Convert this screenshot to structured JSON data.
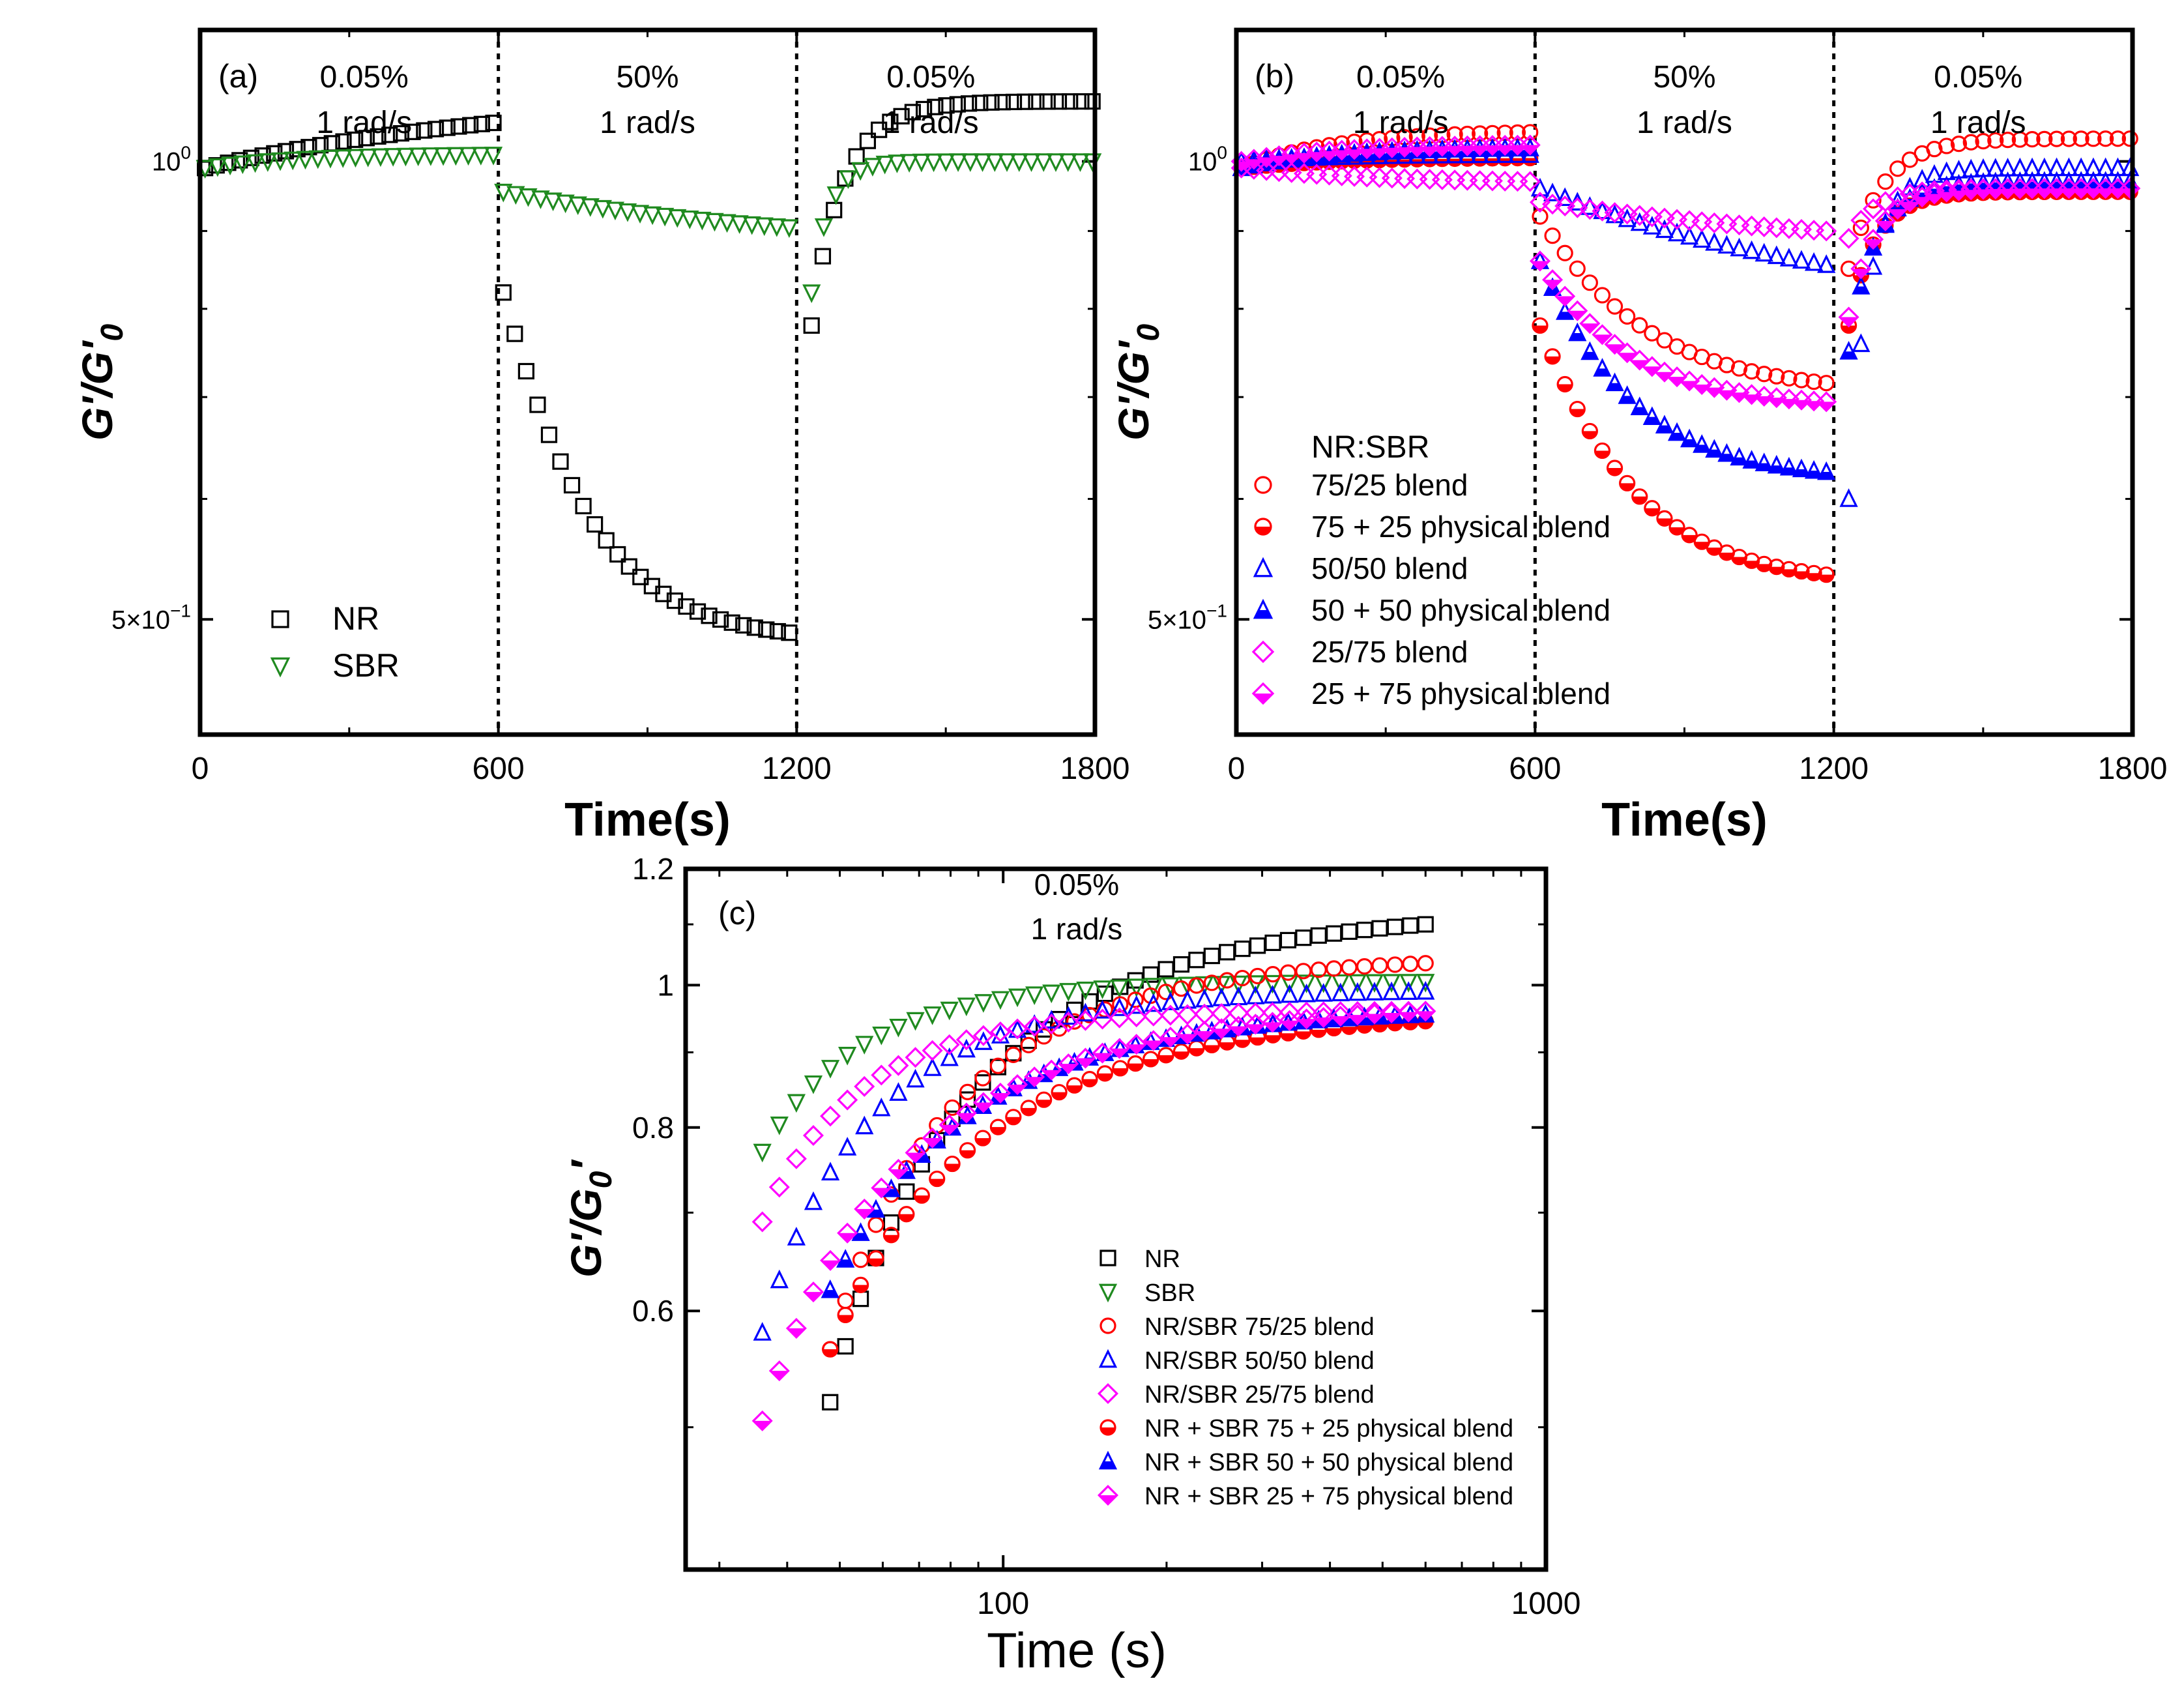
{
  "colors": {
    "NR": "#000000",
    "SBR": "#1f8a1f",
    "red": "#ff0000",
    "blue": "#0000ff",
    "magenta": "#ff00ff"
  },
  "chart_data": [
    {
      "id": "a",
      "type": "scatter",
      "panel_label": "(a)",
      "xlabel": "Time(s)",
      "ylabel_html": "G'/G'0",
      "ylabel_main": "G'/G'",
      "ylabel_sub": "0",
      "yscale": "log",
      "xlim": [
        0,
        1800
      ],
      "ylim": [
        0.42,
        1.22
      ],
      "xticks": [
        "0",
        "600",
        "1200",
        "1800"
      ],
      "yticks": [
        {
          "v": 1.0,
          "label": "10",
          "sup": "0"
        },
        {
          "v": 0.5,
          "label": "5×10",
          "sup": "−1"
        }
      ],
      "segments": [
        600,
        1200
      ],
      "segment_labels": [
        {
          "x": 330,
          "lines": [
            "0.05%",
            "1 rad/s"
          ]
        },
        {
          "x": 900,
          "lines": [
            "50%",
            "1 rad/s"
          ]
        },
        {
          "x": 1470,
          "lines": [
            "0.05%",
            "1 rad/s"
          ]
        }
      ],
      "legend_position": "bottom-left",
      "series": [
        {
          "name": "NR",
          "marker": "square",
          "color": "#000000",
          "fill": "none",
          "phases": [
            {
              "t0": 10,
              "t1": 590,
              "n": 26,
              "v0": 0.99,
              "v1": 1.06,
              "k": 0.8
            },
            {
              "t0": 610,
              "t1": 1185,
              "n": 26,
              "v0": 0.82,
              "v1": 0.49,
              "k": 4.0
            },
            {
              "t0": 1230,
              "t1": 1795,
              "n": 26,
              "v0": 0.78,
              "v1": 1.095,
              "k": 8.0
            }
          ]
        },
        {
          "name": "SBR",
          "marker": "triangle-down",
          "color": "#1f8a1f",
          "fill": "none",
          "phases": [
            {
              "t0": 10,
              "t1": 590,
              "n": 24,
              "v0": 0.99,
              "v1": 1.01,
              "k": 3.0
            },
            {
              "t0": 610,
              "t1": 1185,
              "n": 24,
              "v0": 0.955,
              "v1": 0.905,
              "k": 1.0
            },
            {
              "t0": 1230,
              "t1": 1795,
              "n": 24,
              "v0": 0.82,
              "v1": 1.0,
              "k": 15.0
            }
          ]
        }
      ]
    },
    {
      "id": "b",
      "type": "scatter",
      "panel_label": "(b)",
      "xlabel": "Time(s)",
      "ylabel_main": "G'/G'",
      "ylabel_sub": "0",
      "yscale": "log",
      "xlim": [
        0,
        1800
      ],
      "ylim": [
        0.42,
        1.22
      ],
      "xticks": [
        "0",
        "600",
        "1200",
        "1800"
      ],
      "yticks": [
        {
          "v": 1.0,
          "label": "10",
          "sup": "0"
        },
        {
          "v": 0.5,
          "label": "5×10",
          "sup": "−1"
        }
      ],
      "segments": [
        600,
        1200
      ],
      "segment_labels": [
        {
          "x": 330,
          "lines": [
            "0.05%",
            "1 rad/s"
          ]
        },
        {
          "x": 900,
          "lines": [
            "50%",
            "1 rad/s"
          ]
        },
        {
          "x": 1490,
          "lines": [
            "0.05%",
            "1 rad/s"
          ]
        }
      ],
      "legend_title": "NR:SBR",
      "legend_position": "left-center",
      "series": [
        {
          "name": "75/25 blend",
          "marker": "circle",
          "color": "#ff0000",
          "fill": "none",
          "phases": [
            {
              "t0": 10,
              "t1": 590,
              "n": 24,
              "v0": 0.99,
              "v1": 1.045,
              "k": 3.0
            },
            {
              "t0": 610,
              "t1": 1185,
              "n": 24,
              "v0": 0.92,
              "v1": 0.715,
              "k": 3.0
            },
            {
              "t0": 1230,
              "t1": 1795,
              "n": 24,
              "v0": 0.85,
              "v1": 1.035,
              "k": 8.0
            }
          ]
        },
        {
          "name": "75 + 25 physical blend",
          "marker": "circle-half",
          "color": "#ff0000",
          "fill": "#ff0000",
          "phases": [
            {
              "t0": 10,
              "t1": 590,
              "n": 24,
              "v0": 0.99,
              "v1": 1.005,
              "k": 3.0
            },
            {
              "t0": 610,
              "t1": 1185,
              "n": 24,
              "v0": 0.78,
              "v1": 0.535,
              "k": 3.5
            },
            {
              "t0": 1230,
              "t1": 1795,
              "n": 24,
              "v0": 0.78,
              "v1": 0.955,
              "k": 10.0
            }
          ]
        },
        {
          "name": "50/50 blend",
          "marker": "triangle-up",
          "color": "#0000ff",
          "fill": "none",
          "phases": [
            {
              "t0": 10,
              "t1": 590,
              "n": 24,
              "v0": 1.0,
              "v1": 1.01,
              "k": 3.0
            },
            {
              "t0": 610,
              "t1": 1185,
              "n": 24,
              "v0": 0.96,
              "v1": 0.855,
              "k": 1.0
            },
            {
              "t0": 1230,
              "t1": 1795,
              "n": 24,
              "v0": 0.6,
              "v1": 0.99,
              "k": 12.0
            }
          ]
        },
        {
          "name": "50 + 50 physical blend",
          "marker": "triangle-half",
          "color": "#0000ff",
          "fill": "#0000ff",
          "phases": [
            {
              "t0": 10,
              "t1": 590,
              "n": 24,
              "v0": 0.99,
              "v1": 1.02,
              "k": 3.0
            },
            {
              "t0": 610,
              "t1": 1185,
              "n": 24,
              "v0": 0.86,
              "v1": 0.625,
              "k": 3.5
            },
            {
              "t0": 1230,
              "t1": 1795,
              "n": 24,
              "v0": 0.75,
              "v1": 0.97,
              "k": 10.0
            }
          ]
        },
        {
          "name": "25/75 blend",
          "marker": "diamond",
          "color": "#ff00ff",
          "fill": "none",
          "phases": [
            {
              "t0": 10,
              "t1": 590,
              "n": 24,
              "v0": 0.99,
              "v1": 0.97,
              "k": 2.0
            },
            {
              "t0": 610,
              "t1": 1185,
              "n": 24,
              "v0": 0.94,
              "v1": 0.9,
              "k": 1.0
            },
            {
              "t0": 1230,
              "t1": 1795,
              "n": 24,
              "v0": 0.89,
              "v1": 0.96,
              "k": 10.0
            }
          ]
        },
        {
          "name": "25 + 75 physical blend",
          "marker": "diamond-half",
          "color": "#ff00ff",
          "fill": "#ff00ff",
          "phases": [
            {
              "t0": 10,
              "t1": 590,
              "n": 24,
              "v0": 1.0,
              "v1": 1.025,
              "k": 3.0
            },
            {
              "t0": 610,
              "t1": 1185,
              "n": 24,
              "v0": 0.86,
              "v1": 0.695,
              "k": 3.5
            },
            {
              "t0": 1230,
              "t1": 1795,
              "n": 24,
              "v0": 0.79,
              "v1": 0.96,
              "k": 10.0
            }
          ]
        }
      ]
    },
    {
      "id": "c",
      "type": "scatter",
      "panel_label": "(c)",
      "xlabel": "Time (s)",
      "ylabel_main": "G'/G",
      "ylabel_sub": "0",
      "ylabel_tail": "′",
      "xscale": "log",
      "yscale": "log",
      "xlim": [
        26,
        1000
      ],
      "ylim": [
        0.4,
        1.2
      ],
      "xticks": [
        {
          "v": 100,
          "label": "100"
        },
        {
          "v": 1000,
          "label": "1000"
        }
      ],
      "yticks": [
        {
          "v": 1.2,
          "label": "1.2"
        },
        {
          "v": 1.0,
          "label": "1"
        },
        {
          "v": 0.8,
          "label": "0.8"
        },
        {
          "v": 0.6,
          "label": "0.6"
        }
      ],
      "annotation": [
        "0.05%",
        "1 rad/s"
      ],
      "legend_position": "lower-right",
      "series": [
        {
          "name": "NR",
          "marker": "square",
          "color": "#000000",
          "fill": "none",
          "t0": 48,
          "v0": 0.52,
          "vend": 1.1,
          "k": 3.2
        },
        {
          "name": "SBR",
          "marker": "triangle-down",
          "color": "#1f8a1f",
          "fill": "none",
          "t0": 36,
          "v0": 0.77,
          "vend": 1.005,
          "k": 6.0
        },
        {
          "name": "NR/SBR 75/25 blend",
          "marker": "circle",
          "color": "#ff0000",
          "fill": "none",
          "t0": 48,
          "v0": 0.565,
          "vend": 1.035,
          "k": 3.8
        },
        {
          "name": "NR/SBR 50/50 blend",
          "marker": "triangle-up",
          "color": "#0000ff",
          "fill": "none",
          "t0": 36,
          "v0": 0.58,
          "vend": 0.99,
          "k": 5.0
        },
        {
          "name": "NR/SBR 25/75 blend",
          "marker": "diamond",
          "color": "#ff00ff",
          "fill": "none",
          "t0": 36,
          "v0": 0.69,
          "vend": 0.96,
          "k": 6.0
        },
        {
          "name": "NR + SBR 75 + 25 physical blend",
          "marker": "circle-half",
          "color": "#ff0000",
          "fill": "#ff0000",
          "t0": 48,
          "v0": 0.565,
          "vend": 0.945,
          "k": 3.2
        },
        {
          "name": "NR + SBR 50 + 50 physical blend",
          "marker": "triangle-half",
          "color": "#0000ff",
          "fill": "#0000ff",
          "t0": 48,
          "v0": 0.62,
          "vend": 0.955,
          "k": 3.6
        },
        {
          "name": "NR + SBR 25 + 75 physical blend",
          "marker": "diamond-half",
          "color": "#ff00ff",
          "fill": "#ff00ff",
          "t0": 36,
          "v0": 0.505,
          "vend": 0.96,
          "k": 3.6
        }
      ]
    }
  ]
}
